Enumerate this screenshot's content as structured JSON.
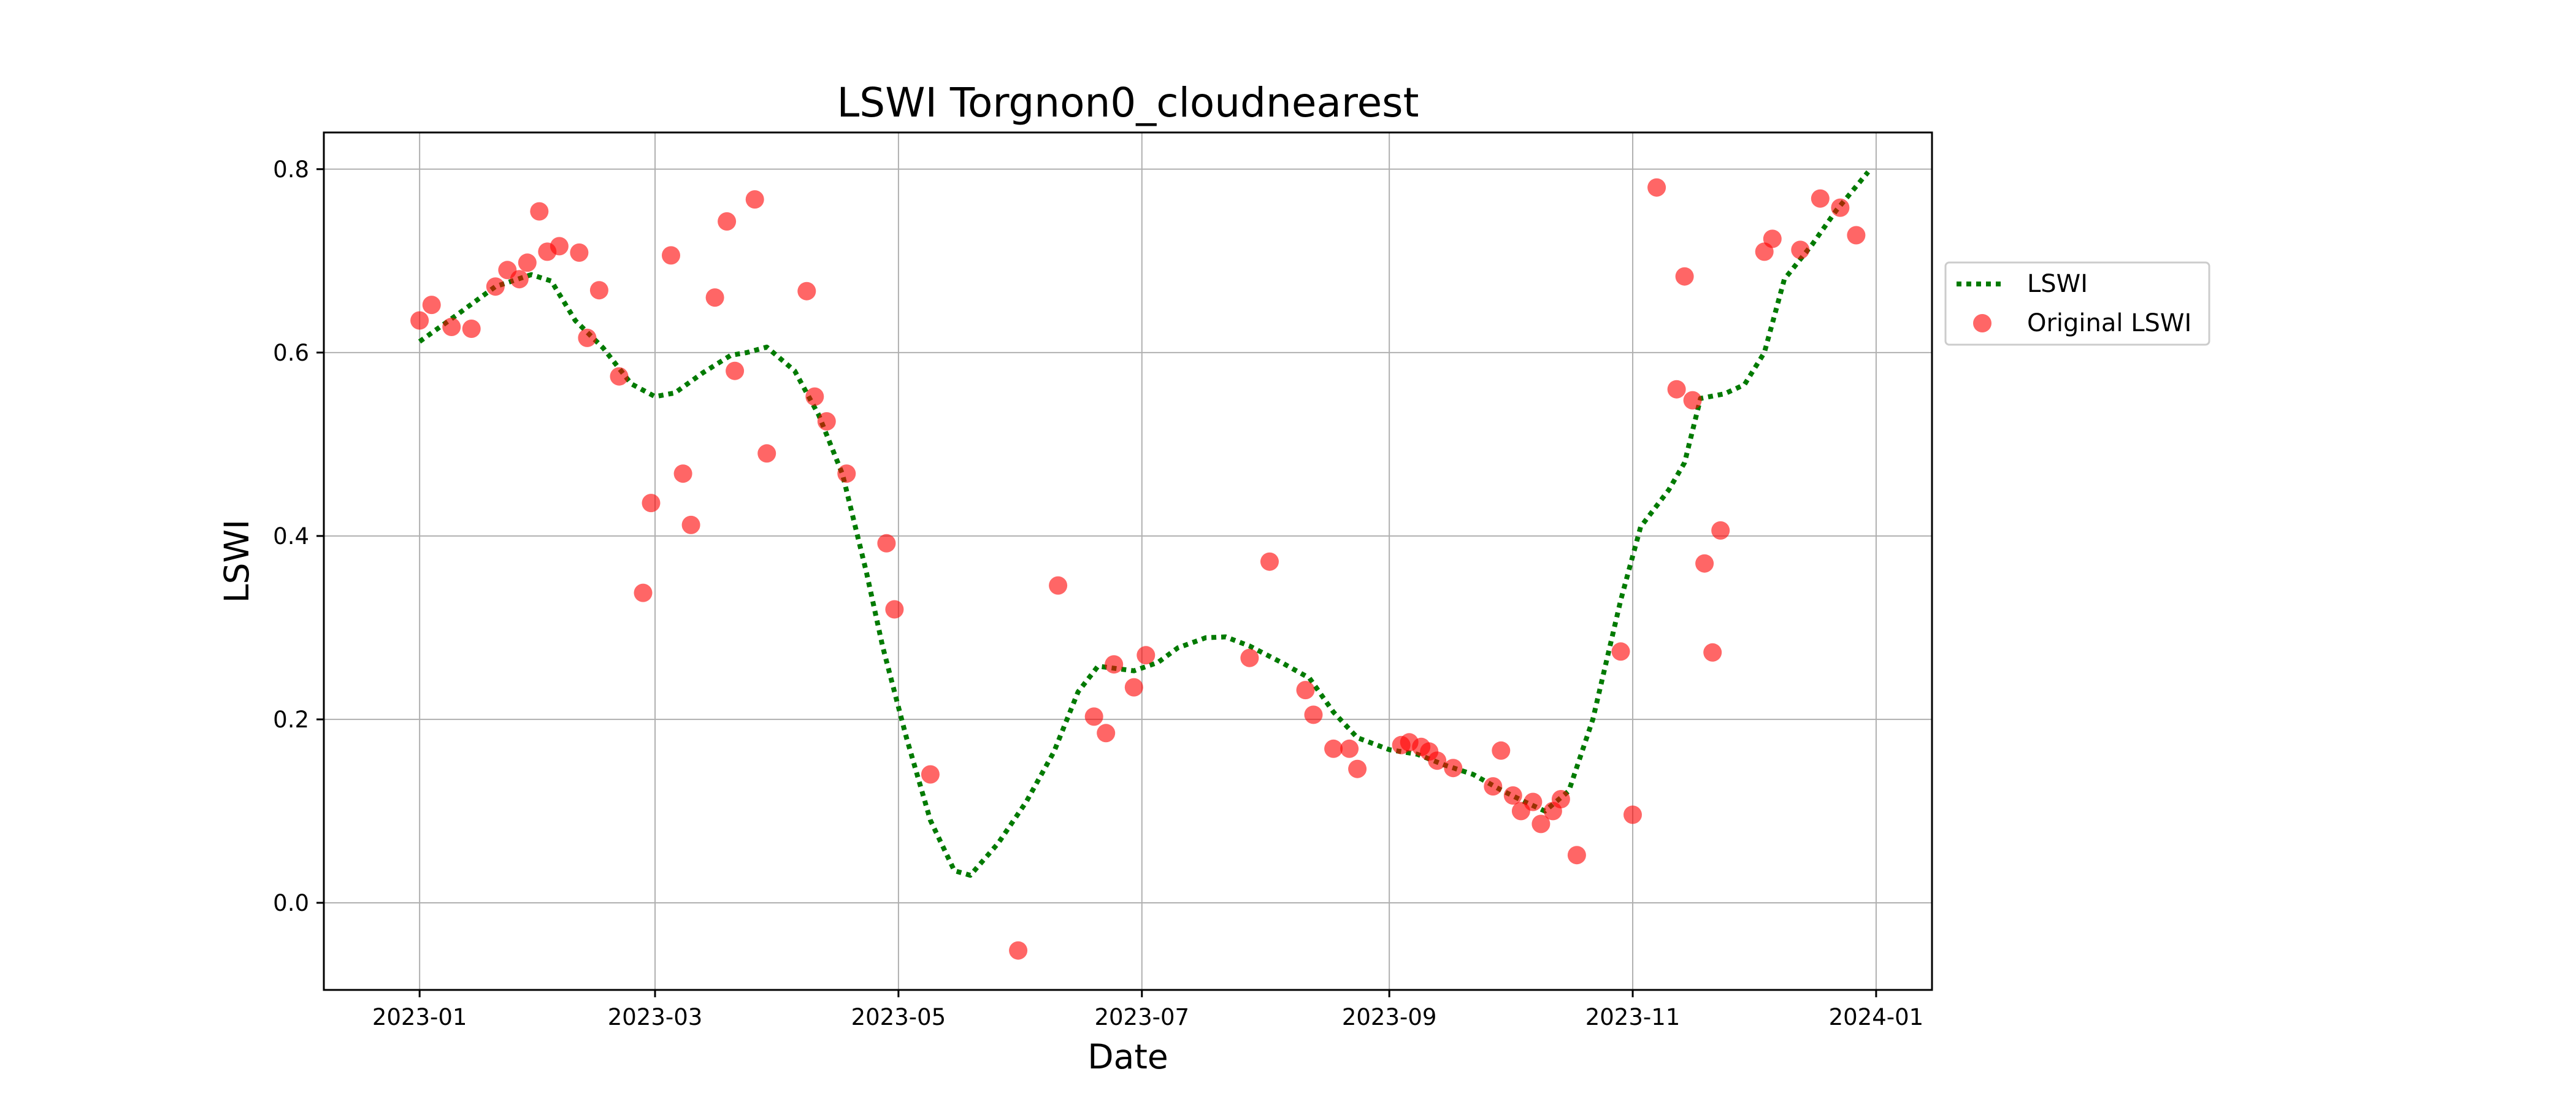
{
  "chart_data": {
    "type": "line",
    "title": "LSWI Torgnon0_cloudnearest",
    "xlabel": "Date",
    "ylabel": "LSWI",
    "xlim": [
      "2022-12-08",
      "2024-01-15"
    ],
    "ylim": [
      -0.095,
      0.84
    ],
    "x_ticks": [
      "2023-01",
      "2023-03",
      "2023-05",
      "2023-07",
      "2023-09",
      "2023-11",
      "2024-01"
    ],
    "y_ticks": [
      0.0,
      0.2,
      0.4,
      0.6,
      0.8
    ],
    "y_tick_labels": [
      "0.0",
      "0.2",
      "0.4",
      "0.6",
      "0.8"
    ],
    "grid": true,
    "legend_position": "outside-right",
    "series": [
      {
        "name": "LSWI",
        "kind": "line",
        "style": "dotted",
        "color": "#007a00",
        "points": [
          [
            "2023-01-01",
            0.612
          ],
          [
            "2023-01-10",
            0.64
          ],
          [
            "2023-01-20",
            0.672
          ],
          [
            "2023-01-29",
            0.685
          ],
          [
            "2023-02-03",
            0.678
          ],
          [
            "2023-02-09",
            0.635
          ],
          [
            "2023-02-16",
            0.605
          ],
          [
            "2023-02-23",
            0.566
          ],
          [
            "2023-03-01",
            0.552
          ],
          [
            "2023-03-06",
            0.556
          ],
          [
            "2023-03-13",
            0.578
          ],
          [
            "2023-03-20",
            0.597
          ],
          [
            "2023-03-24",
            0.6
          ],
          [
            "2023-03-29",
            0.606
          ],
          [
            "2023-04-05",
            0.58
          ],
          [
            "2023-04-11",
            0.532
          ],
          [
            "2023-04-17",
            0.467
          ],
          [
            "2023-04-23",
            0.36
          ],
          [
            "2023-04-27",
            0.28
          ],
          [
            "2023-05-03",
            0.18
          ],
          [
            "2023-05-09",
            0.09
          ],
          [
            "2023-05-15",
            0.035
          ],
          [
            "2023-05-19",
            0.03
          ],
          [
            "2023-05-26",
            0.065
          ],
          [
            "2023-06-02",
            0.11
          ],
          [
            "2023-06-09",
            0.165
          ],
          [
            "2023-06-15",
            0.23
          ],
          [
            "2023-06-20",
            0.258
          ],
          [
            "2023-06-29",
            0.253
          ],
          [
            "2023-07-05",
            0.262
          ],
          [
            "2023-07-10",
            0.278
          ],
          [
            "2023-07-17",
            0.289
          ],
          [
            "2023-07-22",
            0.29
          ],
          [
            "2023-07-28",
            0.28
          ],
          [
            "2023-08-05",
            0.262
          ],
          [
            "2023-08-12",
            0.245
          ],
          [
            "2023-08-18",
            0.208
          ],
          [
            "2023-08-24",
            0.18
          ],
          [
            "2023-09-01",
            0.167
          ],
          [
            "2023-09-08",
            0.162
          ],
          [
            "2023-09-15",
            0.15
          ],
          [
            "2023-09-22",
            0.14
          ],
          [
            "2023-09-29",
            0.123
          ],
          [
            "2023-10-05",
            0.11
          ],
          [
            "2023-10-10",
            0.1
          ],
          [
            "2023-10-16",
            0.122
          ],
          [
            "2023-10-22",
            0.2
          ],
          [
            "2023-10-29",
            0.33
          ],
          [
            "2023-11-03",
            0.41
          ],
          [
            "2023-11-10",
            0.45
          ],
          [
            "2023-11-14",
            0.48
          ],
          [
            "2023-11-18",
            0.55
          ],
          [
            "2023-11-24",
            0.555
          ],
          [
            "2023-11-29",
            0.565
          ],
          [
            "2023-12-04",
            0.6
          ],
          [
            "2023-12-09",
            0.68
          ],
          [
            "2023-12-16",
            0.718
          ],
          [
            "2023-12-22",
            0.755
          ],
          [
            "2023-12-30",
            0.797
          ]
        ]
      },
      {
        "name": "Original LSWI",
        "kind": "scatter",
        "color": "#ff0000",
        "points": [
          [
            "2023-01-01",
            0.635
          ],
          [
            "2023-01-04",
            0.652
          ],
          [
            "2023-01-09",
            0.628
          ],
          [
            "2023-01-14",
            0.626
          ],
          [
            "2023-01-20",
            0.672
          ],
          [
            "2023-01-23",
            0.69
          ],
          [
            "2023-01-26",
            0.68
          ],
          [
            "2023-01-28",
            0.698
          ],
          [
            "2023-01-31",
            0.754
          ],
          [
            "2023-02-02",
            0.71
          ],
          [
            "2023-02-05",
            0.716
          ],
          [
            "2023-02-10",
            0.709
          ],
          [
            "2023-02-12",
            0.616
          ],
          [
            "2023-02-15",
            0.668
          ],
          [
            "2023-02-20",
            0.574
          ],
          [
            "2023-02-26",
            0.338
          ],
          [
            "2023-02-28",
            0.436
          ],
          [
            "2023-03-05",
            0.706
          ],
          [
            "2023-03-08",
            0.468
          ],
          [
            "2023-03-10",
            0.412
          ],
          [
            "2023-03-16",
            0.66
          ],
          [
            "2023-03-19",
            0.743
          ],
          [
            "2023-03-21",
            0.58
          ],
          [
            "2023-03-26",
            0.767
          ],
          [
            "2023-03-29",
            0.49
          ],
          [
            "2023-04-08",
            0.667
          ],
          [
            "2023-04-10",
            0.552
          ],
          [
            "2023-04-13",
            0.525
          ],
          [
            "2023-04-18",
            0.468
          ],
          [
            "2023-04-28",
            0.392
          ],
          [
            "2023-04-30",
            0.32
          ],
          [
            "2023-05-09",
            0.14
          ],
          [
            "2023-05-31",
            -0.052
          ],
          [
            "2023-06-10",
            0.346
          ],
          [
            "2023-06-19",
            0.203
          ],
          [
            "2023-06-22",
            0.185
          ],
          [
            "2023-06-24",
            0.26
          ],
          [
            "2023-06-29",
            0.235
          ],
          [
            "2023-07-02",
            0.27
          ],
          [
            "2023-07-28",
            0.267
          ],
          [
            "2023-08-02",
            0.372
          ],
          [
            "2023-08-11",
            0.232
          ],
          [
            "2023-08-13",
            0.205
          ],
          [
            "2023-08-18",
            0.168
          ],
          [
            "2023-08-22",
            0.168
          ],
          [
            "2023-08-24",
            0.146
          ],
          [
            "2023-09-04",
            0.172
          ],
          [
            "2023-09-06",
            0.175
          ],
          [
            "2023-09-09",
            0.17
          ],
          [
            "2023-09-11",
            0.165
          ],
          [
            "2023-09-13",
            0.155
          ],
          [
            "2023-09-17",
            0.147
          ],
          [
            "2023-09-27",
            0.127
          ],
          [
            "2023-09-29",
            0.166
          ],
          [
            "2023-10-02",
            0.117
          ],
          [
            "2023-10-04",
            0.1
          ],
          [
            "2023-10-07",
            0.11
          ],
          [
            "2023-10-09",
            0.086
          ],
          [
            "2023-10-12",
            0.1
          ],
          [
            "2023-10-14",
            0.113
          ],
          [
            "2023-10-18",
            0.052
          ],
          [
            "2023-10-29",
            0.274
          ],
          [
            "2023-11-01",
            0.096
          ],
          [
            "2023-11-07",
            0.78
          ],
          [
            "2023-11-12",
            0.56
          ],
          [
            "2023-11-14",
            0.683
          ],
          [
            "2023-11-16",
            0.548
          ],
          [
            "2023-11-19",
            0.37
          ],
          [
            "2023-11-21",
            0.273
          ],
          [
            "2023-11-23",
            0.406
          ],
          [
            "2023-12-04",
            0.71
          ],
          [
            "2023-12-06",
            0.724
          ],
          [
            "2023-12-13",
            0.712
          ],
          [
            "2023-12-18",
            0.768
          ],
          [
            "2023-12-23",
            0.758
          ],
          [
            "2023-12-27",
            0.728
          ]
        ]
      }
    ]
  }
}
